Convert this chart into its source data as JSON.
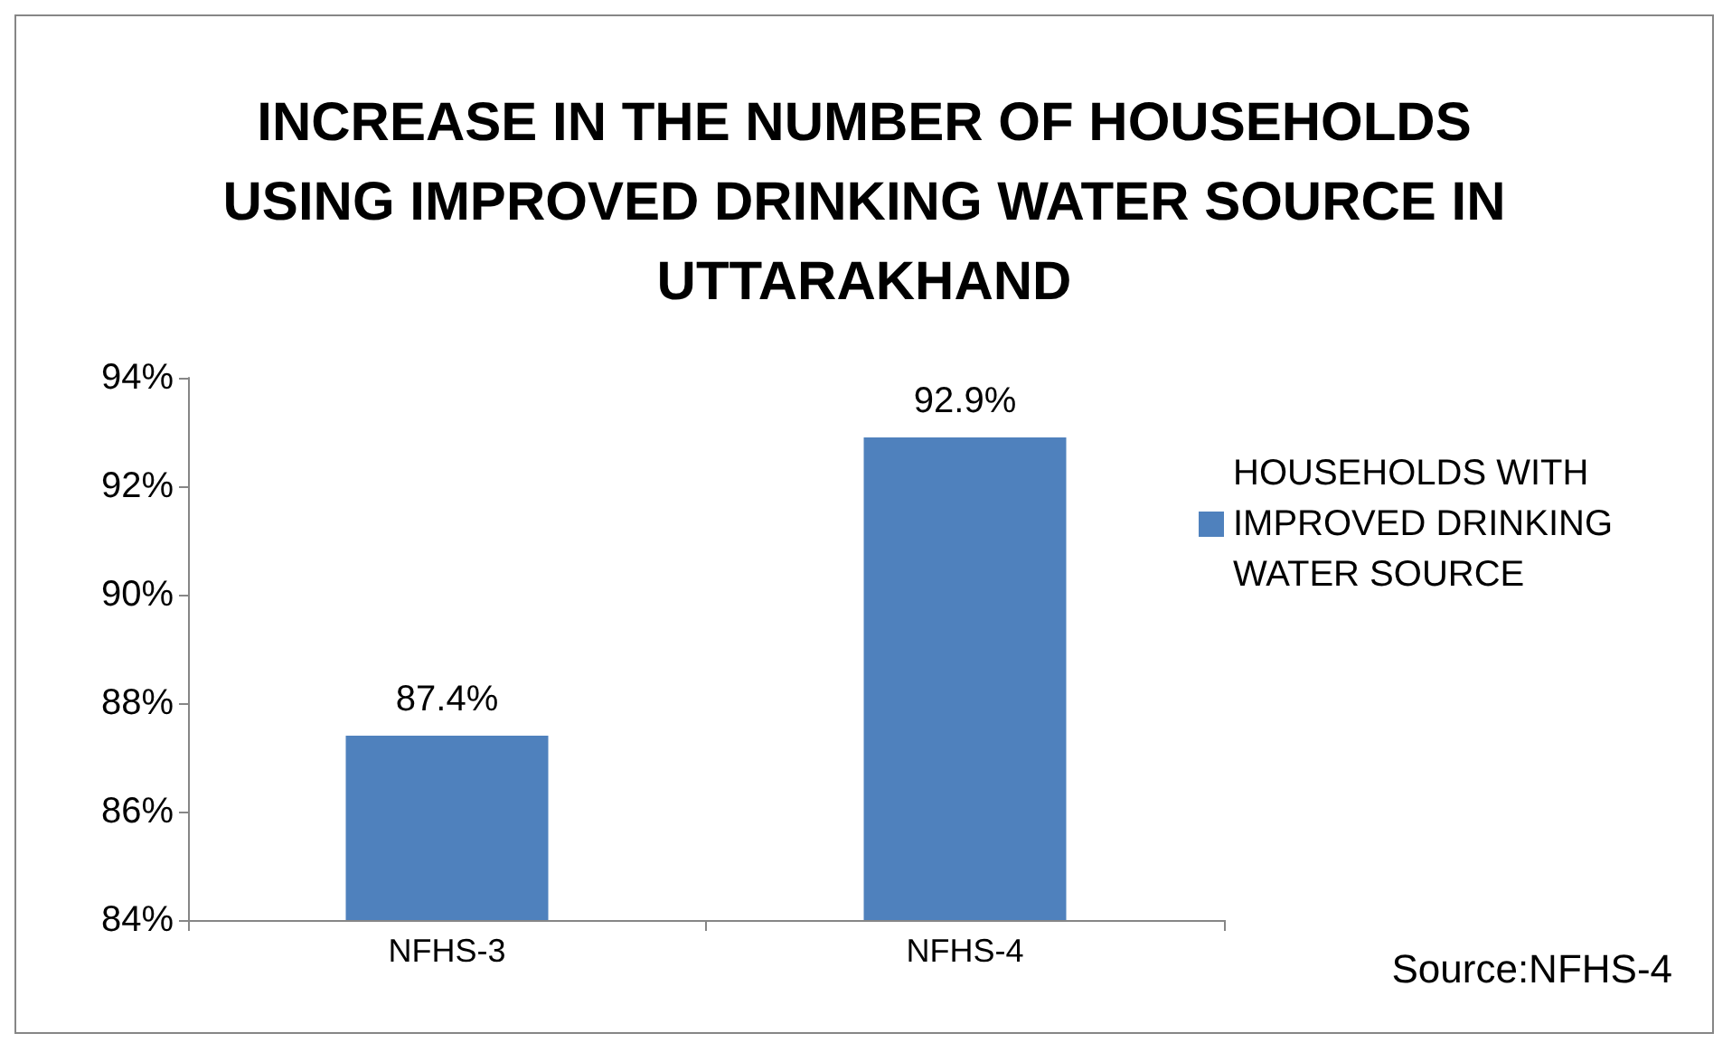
{
  "chart_data": {
    "type": "bar",
    "title": "INCREASE IN THE NUMBER OF HOUSEHOLDS\nUSING IMPROVED DRINKING WATER SOURCE IN\nUTTARAKHAND",
    "categories": [
      "NFHS-3",
      "NFHS-4"
    ],
    "series": [
      {
        "name": "HOUSEHOLDS WITH IMPROVED DRINKING WATER SOURCE",
        "color": "#4f81bd",
        "values": [
          87.4,
          92.9
        ],
        "value_labels": [
          "87.4%",
          "92.9%"
        ]
      }
    ],
    "ylim": [
      84,
      94
    ],
    "yticks": [
      {
        "value": 84,
        "label": "84%"
      },
      {
        "value": 86,
        "label": "86%"
      },
      {
        "value": 88,
        "label": "88%"
      },
      {
        "value": 90,
        "label": "90%"
      },
      {
        "value": 92,
        "label": "92%"
      },
      {
        "value": 94,
        "label": "94%"
      }
    ],
    "grid": false,
    "legend": "right",
    "annotations": [
      "Source:NFHS-4"
    ]
  }
}
